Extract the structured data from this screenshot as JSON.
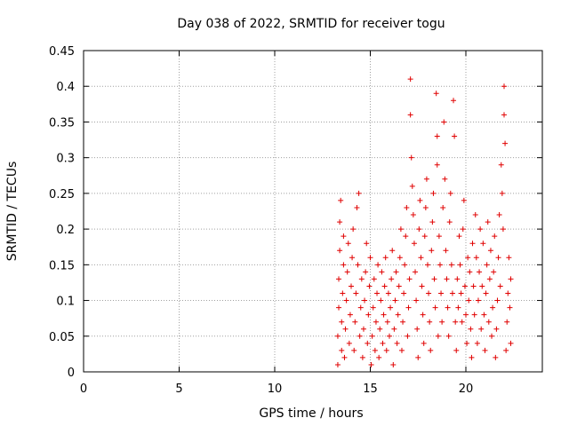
{
  "chart_data": {
    "type": "scatter",
    "title": "Day 038 of 2022, SRMTID for receiver togu",
    "xlabel": "GPS time / hours",
    "ylabel": "SRMTID / TECUs",
    "xlim": [
      0,
      24
    ],
    "ylim": [
      0,
      0.45
    ],
    "x_ticks": [
      "0",
      "5",
      "10",
      "15",
      "20"
    ],
    "y_ticks": [
      "0",
      "0.05",
      "0.1",
      "0.15",
      "0.2",
      "0.25",
      "0.3",
      "0.35",
      "0.4",
      "0.45"
    ],
    "grid": true,
    "marker": "+",
    "color": "#e00000",
    "series": [
      {
        "points": [
          [
            13.3,
            0.01
          ],
          [
            13.3,
            0.05
          ],
          [
            13.35,
            0.09
          ],
          [
            13.35,
            0.13
          ],
          [
            13.4,
            0.17
          ],
          [
            13.4,
            0.21
          ],
          [
            13.45,
            0.24
          ],
          [
            13.5,
            0.03
          ],
          [
            13.5,
            0.07
          ],
          [
            13.55,
            0.11
          ],
          [
            13.6,
            0.15
          ],
          [
            13.6,
            0.19
          ],
          [
            13.65,
            0.02
          ],
          [
            13.7,
            0.06
          ],
          [
            13.75,
            0.1
          ],
          [
            13.8,
            0.14
          ],
          [
            13.85,
            0.18
          ],
          [
            13.9,
            0.04
          ],
          [
            13.95,
            0.08
          ],
          [
            14.0,
            0.12
          ],
          [
            14.05,
            0.16
          ],
          [
            14.1,
            0.2
          ],
          [
            14.15,
            0.03
          ],
          [
            14.2,
            0.07
          ],
          [
            14.25,
            0.11
          ],
          [
            14.3,
            0.23
          ],
          [
            14.35,
            0.15
          ],
          [
            14.4,
            0.25
          ],
          [
            14.45,
            0.05
          ],
          [
            14.5,
            0.09
          ],
          [
            14.55,
            0.13
          ],
          [
            14.6,
            0.02
          ],
          [
            14.65,
            0.06
          ],
          [
            14.7,
            0.1
          ],
          [
            14.75,
            0.14
          ],
          [
            14.8,
            0.18
          ],
          [
            14.85,
            0.04
          ],
          [
            14.9,
            0.08
          ],
          [
            14.95,
            0.12
          ],
          [
            15.0,
            0.16
          ],
          [
            15.05,
            0.01
          ],
          [
            15.1,
            0.05
          ],
          [
            15.15,
            0.09
          ],
          [
            15.2,
            0.13
          ],
          [
            15.25,
            0.03
          ],
          [
            15.3,
            0.07
          ],
          [
            15.35,
            0.11
          ],
          [
            15.4,
            0.15
          ],
          [
            15.45,
            0.02
          ],
          [
            15.5,
            0.06
          ],
          [
            15.55,
            0.1
          ],
          [
            15.6,
            0.14
          ],
          [
            15.65,
            0.04
          ],
          [
            15.7,
            0.08
          ],
          [
            15.75,
            0.12
          ],
          [
            15.8,
            0.16
          ],
          [
            15.85,
            0.03
          ],
          [
            15.9,
            0.07
          ],
          [
            15.95,
            0.11
          ],
          [
            16.0,
            0.05
          ],
          [
            16.05,
            0.09
          ],
          [
            16.1,
            0.13
          ],
          [
            16.15,
            0.17
          ],
          [
            16.2,
            0.01
          ],
          [
            16.25,
            0.06
          ],
          [
            16.3,
            0.1
          ],
          [
            16.35,
            0.14
          ],
          [
            16.4,
            0.04
          ],
          [
            16.45,
            0.08
          ],
          [
            16.5,
            0.12
          ],
          [
            16.55,
            0.16
          ],
          [
            16.6,
            0.2
          ],
          [
            16.65,
            0.03
          ],
          [
            16.7,
            0.07
          ],
          [
            16.75,
            0.11
          ],
          [
            16.8,
            0.15
          ],
          [
            16.85,
            0.19
          ],
          [
            16.9,
            0.23
          ],
          [
            16.95,
            0.05
          ],
          [
            17.0,
            0.09
          ],
          [
            17.05,
            0.13
          ],
          [
            17.1,
            0.41
          ],
          [
            17.1,
            0.36
          ],
          [
            17.15,
            0.3
          ],
          [
            17.2,
            0.26
          ],
          [
            17.25,
            0.22
          ],
          [
            17.3,
            0.18
          ],
          [
            17.35,
            0.14
          ],
          [
            17.4,
            0.1
          ],
          [
            17.45,
            0.06
          ],
          [
            17.5,
            0.02
          ],
          [
            17.55,
            0.2
          ],
          [
            17.6,
            0.24
          ],
          [
            17.65,
            0.16
          ],
          [
            17.7,
            0.12
          ],
          [
            17.75,
            0.08
          ],
          [
            17.8,
            0.04
          ],
          [
            17.85,
            0.19
          ],
          [
            17.9,
            0.23
          ],
          [
            17.95,
            0.27
          ],
          [
            18.0,
            0.15
          ],
          [
            18.05,
            0.11
          ],
          [
            18.1,
            0.07
          ],
          [
            18.15,
            0.03
          ],
          [
            18.2,
            0.17
          ],
          [
            18.25,
            0.21
          ],
          [
            18.3,
            0.25
          ],
          [
            18.35,
            0.13
          ],
          [
            18.4,
            0.09
          ],
          [
            18.45,
            0.39
          ],
          [
            18.5,
            0.33
          ],
          [
            18.5,
            0.29
          ],
          [
            18.55,
            0.05
          ],
          [
            18.6,
            0.19
          ],
          [
            18.65,
            0.15
          ],
          [
            18.7,
            0.11
          ],
          [
            18.75,
            0.07
          ],
          [
            18.8,
            0.23
          ],
          [
            18.85,
            0.35
          ],
          [
            18.9,
            0.27
          ],
          [
            18.95,
            0.17
          ],
          [
            19.0,
            0.13
          ],
          [
            19.05,
            0.09
          ],
          [
            19.1,
            0.05
          ],
          [
            19.15,
            0.21
          ],
          [
            19.2,
            0.25
          ],
          [
            19.25,
            0.15
          ],
          [
            19.3,
            0.11
          ],
          [
            19.35,
            0.38
          ],
          [
            19.4,
            0.33
          ],
          [
            19.45,
            0.07
          ],
          [
            19.5,
            0.03
          ],
          [
            19.55,
            0.13
          ],
          [
            19.6,
            0.09
          ],
          [
            19.65,
            0.19
          ],
          [
            19.7,
            0.15
          ],
          [
            19.75,
            0.11
          ],
          [
            19.8,
            0.07
          ],
          [
            19.85,
            0.2
          ],
          [
            19.9,
            0.24
          ],
          [
            19.95,
            0.12
          ],
          [
            20.0,
            0.08
          ],
          [
            20.05,
            0.04
          ],
          [
            20.1,
            0.16
          ],
          [
            20.15,
            0.1
          ],
          [
            20.2,
            0.14
          ],
          [
            20.25,
            0.06
          ],
          [
            20.3,
            0.02
          ],
          [
            20.35,
            0.18
          ],
          [
            20.4,
            0.12
          ],
          [
            20.45,
            0.08
          ],
          [
            20.5,
            0.22
          ],
          [
            20.55,
            0.16
          ],
          [
            20.6,
            0.04
          ],
          [
            20.65,
            0.1
          ],
          [
            20.7,
            0.14
          ],
          [
            20.75,
            0.2
          ],
          [
            20.8,
            0.06
          ],
          [
            20.85,
            0.12
          ],
          [
            20.9,
            0.18
          ],
          [
            20.95,
            0.08
          ],
          [
            21.0,
            0.03
          ],
          [
            21.05,
            0.11
          ],
          [
            21.1,
            0.15
          ],
          [
            21.15,
            0.21
          ],
          [
            21.2,
            0.07
          ],
          [
            21.25,
            0.13
          ],
          [
            21.3,
            0.17
          ],
          [
            21.35,
            0.05
          ],
          [
            21.4,
            0.09
          ],
          [
            21.45,
            0.14
          ],
          [
            21.5,
            0.19
          ],
          [
            21.55,
            0.02
          ],
          [
            21.6,
            0.06
          ],
          [
            21.65,
            0.1
          ],
          [
            21.7,
            0.16
          ],
          [
            21.75,
            0.22
          ],
          [
            21.8,
            0.12
          ],
          [
            21.85,
            0.29
          ],
          [
            21.9,
            0.25
          ],
          [
            21.95,
            0.2
          ],
          [
            22.0,
            0.4
          ],
          [
            22.0,
            0.36
          ],
          [
            22.05,
            0.32
          ],
          [
            22.1,
            0.03
          ],
          [
            22.15,
            0.07
          ],
          [
            22.2,
            0.11
          ],
          [
            22.25,
            0.16
          ],
          [
            22.3,
            0.09
          ],
          [
            22.35,
            0.13
          ],
          [
            22.35,
            0.04
          ]
        ]
      }
    ]
  }
}
